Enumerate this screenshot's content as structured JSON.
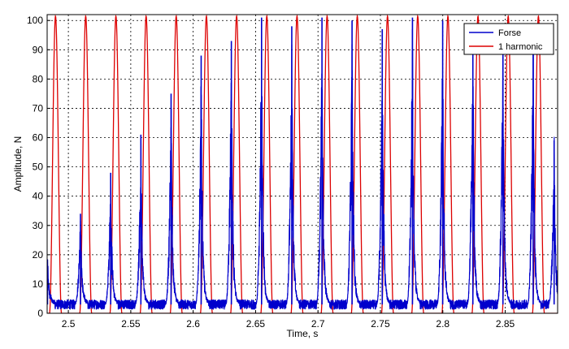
{
  "chart_data": {
    "type": "line",
    "title": "",
    "xlabel": "Time, s",
    "ylabel": "Amplitude, N",
    "xlim": [
      2.483,
      2.892
    ],
    "ylim": [
      0,
      102
    ],
    "xticks": [
      2.5,
      2.55,
      2.6,
      2.65,
      2.7,
      2.75,
      2.8,
      2.85
    ],
    "xtick_labels": [
      "2.5",
      "2.55",
      "2.6",
      "2.65",
      "2.7",
      "2.75",
      "2.8",
      "2.85"
    ],
    "yticks": [
      0,
      10,
      20,
      30,
      40,
      50,
      60,
      70,
      80,
      90,
      100
    ],
    "ytick_labels": [
      "0",
      "10",
      "20",
      "30",
      "40",
      "50",
      "60",
      "70",
      "80",
      "90",
      "100"
    ],
    "grid": true,
    "legend": "top-right",
    "series": [
      {
        "name": "Forse",
        "color": "#0000cc",
        "peak_times": [
          2.4833,
          2.5097,
          2.5339,
          2.5581,
          2.5823,
          2.6064,
          2.6306,
          2.6548,
          2.679,
          2.7032,
          2.7273,
          2.7515,
          2.7757,
          2.7999,
          2.8241,
          2.8482,
          2.8724,
          2.8892
        ],
        "peak_values": [
          16,
          34,
          48,
          61,
          75,
          88,
          93,
          101,
          98,
          101,
          100,
          97,
          101,
          100,
          99,
          98,
          96,
          59
        ],
        "baseline": 3
      },
      {
        "name": "1 harmonic",
        "color": "#dd0000",
        "period": 0.02418,
        "peak_times": [
          2.4897,
          2.5139,
          2.5381,
          2.5623,
          2.5864,
          2.6106,
          2.6348,
          2.659,
          2.6832,
          2.7073,
          2.7315,
          2.7557,
          2.7799,
          2.8041,
          2.8282,
          2.8524,
          2.8766
        ],
        "min": 0,
        "max": 101.5
      }
    ]
  }
}
